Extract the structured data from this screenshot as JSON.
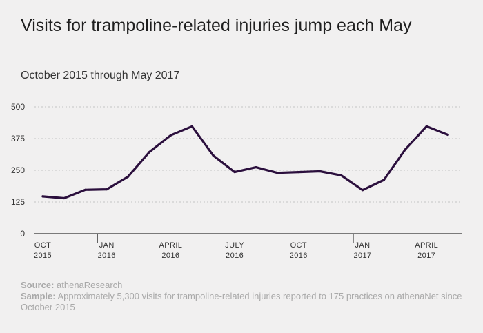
{
  "chart_data": {
    "type": "line",
    "title": "Visits for trampoline-related injuries jump each May",
    "subtitle": "October 2015 through May 2017",
    "color": "#2b0f3d",
    "ylim": [
      0,
      500
    ],
    "yticks": [
      0,
      125,
      250,
      375,
      500
    ],
    "grid": true,
    "x": [
      "2015-10",
      "2015-11",
      "2015-12",
      "2016-01",
      "2016-02",
      "2016-03",
      "2016-04",
      "2016-05",
      "2016-06",
      "2016-07",
      "2016-08",
      "2016-09",
      "2016-10",
      "2016-11",
      "2016-12",
      "2017-01",
      "2017-02",
      "2017-03",
      "2017-04",
      "2017-05"
    ],
    "xtick_labels": [
      {
        "month": "OCT",
        "year": "2015",
        "index": 0
      },
      {
        "month": "JAN",
        "year": "2016",
        "index": 3
      },
      {
        "month": "APRIL",
        "year": "2016",
        "index": 6
      },
      {
        "month": "JULY",
        "year": "2016",
        "index": 9
      },
      {
        "month": "OCT",
        "year": "2016",
        "index": 12
      },
      {
        "month": "JAN",
        "year": "2017",
        "index": 15
      },
      {
        "month": "APRIL",
        "year": "2017",
        "index": 18
      }
    ],
    "year_separators": [
      3,
      15
    ],
    "series": [
      {
        "values": [
          147,
          140,
          173,
          175,
          225,
          322,
          388,
          423,
          308,
          243,
          262,
          240,
          243,
          246,
          230,
          172,
          212,
          332,
          423,
          390
        ]
      }
    ]
  },
  "footer": {
    "source_label": "Source:",
    "source_text": " athenaResearch",
    "sample_label": "Sample:",
    "sample_text": " Approximately 5,300 visits for trampoline-related injuries reported to 175 practices on athenaNet since October 2015"
  }
}
